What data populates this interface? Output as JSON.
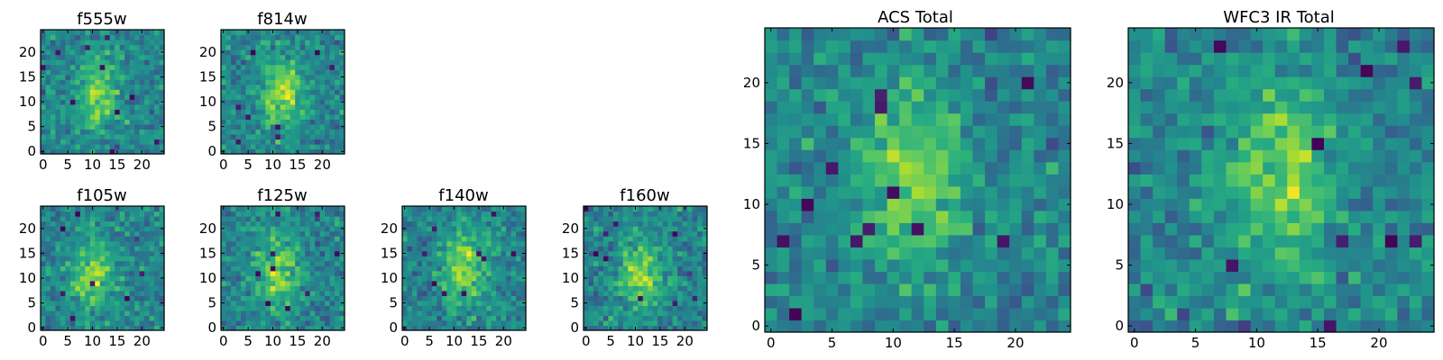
{
  "chart_data": [
    {
      "type": "heatmap",
      "title": "f555w",
      "xticks": [
        "0",
        "5",
        "10",
        "15",
        "20"
      ],
      "yticks": [
        "0",
        "5",
        "10",
        "15",
        "20"
      ],
      "xlim": [
        0,
        25
      ],
      "ylim": [
        0,
        25
      ],
      "colormap": "viridis",
      "seed": 11,
      "peak": {
        "x": 11,
        "y": 12,
        "amp": 0.35
      },
      "bad_pixels": 10
    },
    {
      "type": "heatmap",
      "title": "f814w",
      "xticks": [
        "0",
        "5",
        "10",
        "15",
        "20"
      ],
      "yticks": [
        "0",
        "5",
        "10",
        "15",
        "20"
      ],
      "xlim": [
        0,
        25
      ],
      "ylim": [
        0,
        25
      ],
      "colormap": "viridis",
      "seed": 23,
      "peak": {
        "x": 12,
        "y": 12,
        "amp": 0.4
      },
      "bad_pixels": 8
    },
    {
      "type": "heatmap",
      "title": "f105w",
      "xticks": [
        "0",
        "5",
        "10",
        "15",
        "20"
      ],
      "yticks": [
        "0",
        "5",
        "10",
        "15",
        "20"
      ],
      "xlim": [
        0,
        25
      ],
      "ylim": [
        0,
        25
      ],
      "colormap": "viridis",
      "seed": 37,
      "peak": {
        "x": 10,
        "y": 11,
        "amp": 0.35
      },
      "bad_pixels": 7
    },
    {
      "type": "heatmap",
      "title": "f125w",
      "xticks": [
        "0",
        "5",
        "10",
        "15",
        "20"
      ],
      "yticks": [
        "0",
        "5",
        "10",
        "15",
        "20"
      ],
      "xlim": [
        0,
        25
      ],
      "ylim": [
        0,
        25
      ],
      "colormap": "viridis",
      "seed": 41,
      "peak": {
        "x": 11,
        "y": 11,
        "amp": 0.35
      },
      "bad_pixels": 9
    },
    {
      "type": "heatmap",
      "title": "f140w",
      "xticks": [
        "0",
        "5",
        "10",
        "15",
        "20"
      ],
      "yticks": [
        "0",
        "5",
        "10",
        "15",
        "20"
      ],
      "xlim": [
        0,
        25
      ],
      "ylim": [
        0,
        25
      ],
      "colormap": "viridis",
      "seed": 53,
      "peak": {
        "x": 12,
        "y": 12,
        "amp": 0.4
      },
      "bad_pixels": 9
    },
    {
      "type": "heatmap",
      "title": "f160w",
      "xticks": [
        "0",
        "5",
        "10",
        "15",
        "20"
      ],
      "yticks": [
        "0",
        "5",
        "10",
        "15",
        "20"
      ],
      "xlim": [
        0,
        25
      ],
      "ylim": [
        0,
        25
      ],
      "colormap": "viridis",
      "seed": 67,
      "peak": {
        "x": 11,
        "y": 11,
        "amp": 0.4
      },
      "bad_pixels": 9
    },
    {
      "type": "heatmap",
      "title": "ACS Total",
      "xticks": [
        "0",
        "5",
        "10",
        "15",
        "20"
      ],
      "yticks": [
        "0",
        "5",
        "10",
        "15",
        "20"
      ],
      "xlim": [
        0,
        25
      ],
      "ylim": [
        0,
        25
      ],
      "colormap": "viridis",
      "seed": 79,
      "peak": {
        "x": 11.5,
        "y": 12,
        "amp": 0.35
      },
      "bad_pixels": 12
    },
    {
      "type": "heatmap",
      "title": "WFC3 IR Total",
      "xticks": [
        "0",
        "5",
        "10",
        "15",
        "20"
      ],
      "yticks": [
        "0",
        "5",
        "10",
        "15",
        "20"
      ],
      "xlim": [
        0,
        25
      ],
      "ylim": [
        0,
        25
      ],
      "colormap": "viridis",
      "seed": 97,
      "peak": {
        "x": 12,
        "y": 12,
        "amp": 0.35
      },
      "bad_pixels": 10
    }
  ]
}
